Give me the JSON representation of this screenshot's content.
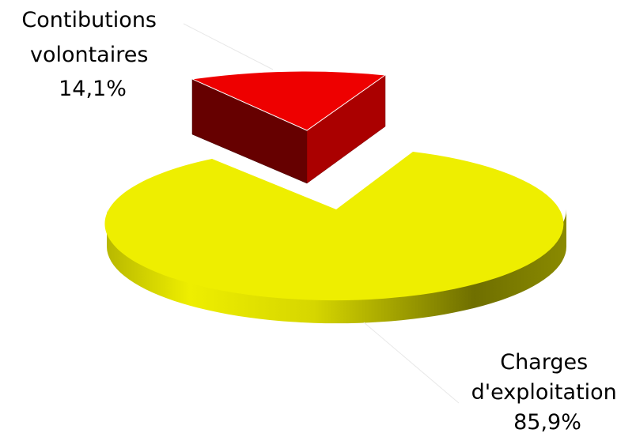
{
  "chart_data": {
    "type": "pie",
    "style": "3d-exploded",
    "title": "",
    "legend": "none",
    "slices": [
      {
        "label_lines": [
          "Contibutions",
          "volontaires"
        ],
        "value_text": "14,1%",
        "value": 14.1,
        "color": "#ee0000",
        "exploded": true
      },
      {
        "label_lines": [
          "Charges",
          "d'exploitation"
        ],
        "value_text": "85,9%",
        "value": 85.9,
        "color": "#eeee00",
        "exploded": false
      }
    ]
  }
}
